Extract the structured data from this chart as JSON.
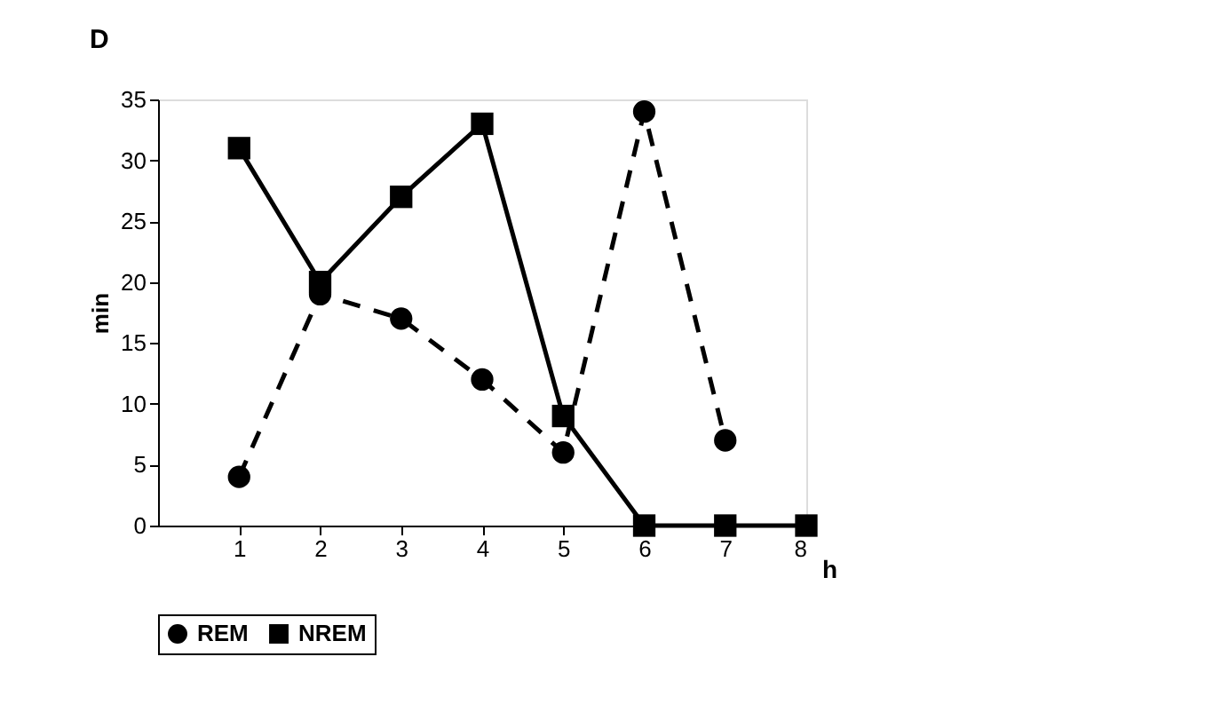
{
  "chart_data": {
    "type": "line",
    "title": "D",
    "xlabel": "h",
    "ylabel": "min",
    "xlim": [
      0,
      8
    ],
    "xticks": [
      1,
      2,
      3,
      4,
      5,
      6,
      7,
      8
    ],
    "ylim": [
      0,
      35
    ],
    "yticks": [
      0,
      5,
      10,
      15,
      20,
      25,
      30,
      35
    ],
    "grid": false,
    "legend": "bottom",
    "series": [
      {
        "name": "REM",
        "color": "#000000",
        "marker": "circle",
        "line_style": "dashed",
        "x": [
          1,
          2,
          3,
          4,
          5,
          6,
          7
        ],
        "values": [
          4,
          19,
          17,
          12,
          6,
          34,
          7
        ]
      },
      {
        "name": "NREM",
        "color": "#000000",
        "marker": "square",
        "line_style": "solid",
        "x": [
          1,
          2,
          3,
          4,
          5,
          6,
          7,
          8
        ],
        "values": [
          31,
          20,
          27,
          33,
          9,
          0,
          0,
          0
        ]
      }
    ]
  }
}
